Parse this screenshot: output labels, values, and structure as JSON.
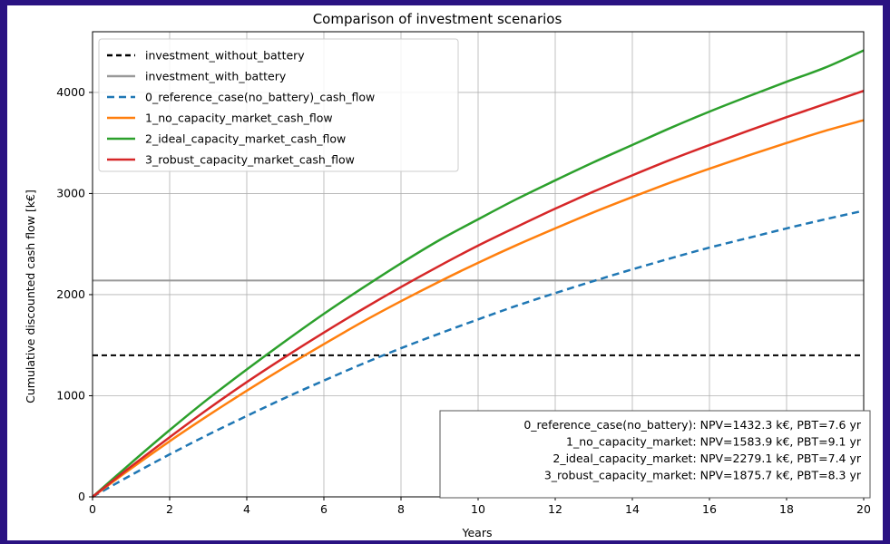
{
  "chart_data": {
    "type": "line",
    "title": "Comparison of investment scenarios",
    "xlabel": "Years",
    "ylabel": "Cumulative discounted cash flow [k€]",
    "xlim": [
      0,
      20
    ],
    "ylim": [
      0,
      4600
    ],
    "xticks": [
      0,
      2,
      4,
      6,
      8,
      10,
      12,
      14,
      16,
      18,
      20
    ],
    "yticks": [
      0,
      1000,
      2000,
      3000,
      4000
    ],
    "grid": true,
    "legend_position": "top-left",
    "hlines": [
      {
        "name": "investment_without_battery",
        "y": 1400,
        "color": "#000000",
        "dash": "6,4",
        "width": 2
      },
      {
        "name": "investment_with_battery",
        "y": 2140,
        "color": "#999999",
        "dash": "",
        "width": 2
      }
    ],
    "series": [
      {
        "name": "0_reference_case(no_battery)_cash_flow",
        "color": "#1f77b4",
        "dash": "8,5",
        "x": [
          0,
          1,
          2,
          3,
          4,
          5,
          6,
          7,
          8,
          9,
          10,
          11,
          12,
          13,
          14,
          15,
          16,
          17,
          18,
          19,
          20
        ],
        "values": [
          0,
          215,
          420,
          615,
          800,
          980,
          1150,
          1315,
          1470,
          1615,
          1755,
          1890,
          2015,
          2135,
          2250,
          2360,
          2465,
          2560,
          2655,
          2745,
          2830
        ]
      },
      {
        "name": "1_no_capacity_market_cash_flow",
        "color": "#ff7f0e",
        "dash": "",
        "x": [
          0,
          1,
          2,
          3,
          4,
          5,
          6,
          7,
          8,
          9,
          10,
          11,
          12,
          13,
          14,
          15,
          16,
          17,
          18,
          19,
          20
        ],
        "values": [
          0,
          280,
          550,
          805,
          1050,
          1285,
          1510,
          1730,
          1935,
          2130,
          2315,
          2490,
          2655,
          2815,
          2965,
          3110,
          3245,
          3375,
          3500,
          3620,
          3725
        ]
      },
      {
        "name": "2_ideal_capacity_market_cash_flow",
        "color": "#2ca02c",
        "dash": "",
        "x": [
          0,
          1,
          2,
          3,
          4,
          5,
          6,
          7,
          8,
          9,
          10,
          11,
          12,
          13,
          14,
          15,
          16,
          17,
          18,
          19,
          20
        ],
        "values": [
          0,
          335,
          660,
          970,
          1260,
          1540,
          1810,
          2065,
          2310,
          2540,
          2745,
          2945,
          3130,
          3310,
          3480,
          3650,
          3810,
          3960,
          4105,
          4245,
          4415
        ]
      },
      {
        "name": "3_robust_capacity_market_cash_flow",
        "color": "#d62728",
        "dash": "",
        "x": [
          0,
          1,
          2,
          3,
          4,
          5,
          6,
          7,
          8,
          9,
          10,
          11,
          12,
          13,
          14,
          15,
          16,
          17,
          18,
          19,
          20
        ],
        "values": [
          0,
          300,
          590,
          870,
          1135,
          1385,
          1625,
          1855,
          2075,
          2285,
          2485,
          2670,
          2850,
          3020,
          3180,
          3335,
          3480,
          3620,
          3755,
          3885,
          4015
        ]
      }
    ],
    "annotation_lines": [
      "0_reference_case(no_battery): NPV=1432.3 k€, PBT=7.6 yr",
      "1_no_capacity_market: NPV=1583.9 k€, PBT=9.1 yr",
      "2_ideal_capacity_market: NPV=2279.1 k€, PBT=7.4 yr",
      "3_robust_capacity_market: NPV=1875.7 k€, PBT=8.3 yr"
    ]
  }
}
